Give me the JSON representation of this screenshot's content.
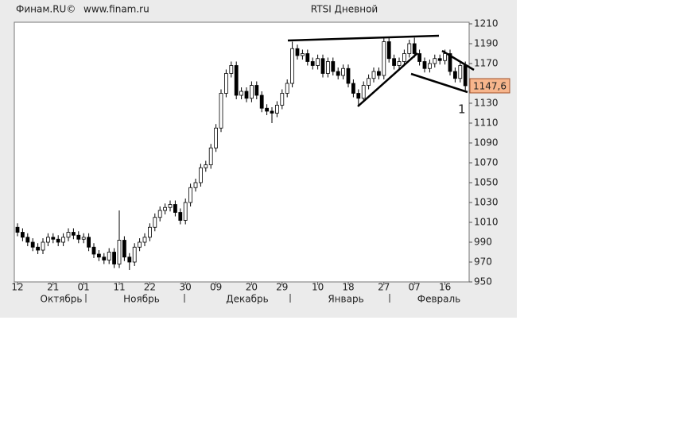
{
  "chart_data": {
    "type": "candlestick",
    "title": "RTSI Дневной",
    "source": "Финам.RU©",
    "url": "www.finam.ru",
    "annotation": "1",
    "categories": [
      "12",
      null,
      null,
      null,
      null,
      null,
      null,
      "21",
      null,
      null,
      null,
      null,
      null,
      "01",
      null,
      null,
      null,
      null,
      null,
      null,
      "11",
      null,
      null,
      null,
      null,
      null,
      "22",
      null,
      null,
      null,
      null,
      null,
      null,
      "30",
      null,
      null,
      null,
      null,
      null,
      "09",
      null,
      null,
      null,
      null,
      null,
      null,
      "20",
      null,
      null,
      null,
      null,
      null,
      "29",
      null,
      null,
      null,
      null,
      null,
      null,
      "10",
      null,
      null,
      null,
      null,
      null,
      "18",
      null,
      null,
      null,
      null,
      null,
      null,
      "27",
      null,
      null,
      null,
      null,
      null,
      "07",
      null,
      null,
      null,
      null,
      null,
      "16",
      null,
      null,
      null,
      null
    ],
    "months": [
      "Октябрь",
      "Ноябрь",
      "Декабрь",
      "Январь",
      "Февраль"
    ],
    "open": [
      1005,
      1000,
      995,
      990,
      985,
      982,
      990,
      995,
      993,
      990,
      995,
      1000,
      997,
      993,
      995,
      985,
      978,
      975,
      972,
      980,
      968,
      992,
      975,
      970,
      985,
      990,
      995,
      1005,
      1015,
      1022,
      1025,
      1028,
      1020,
      1012,
      1030,
      1045,
      1050,
      1065,
      1068,
      1085,
      1105,
      1140,
      1160,
      1168,
      1138,
      1142,
      1135,
      1148,
      1138,
      1125,
      1122,
      1120,
      1128,
      1140,
      1150,
      1185,
      1178,
      1180,
      1172,
      1168,
      1175,
      1160,
      1172,
      1162,
      1158,
      1165,
      1150,
      1140,
      1135,
      1148,
      1155,
      1162,
      1158,
      1192,
      1175,
      1168,
      1172,
      1180,
      1190,
      1180,
      1172,
      1165,
      1170,
      1175,
      1173,
      1180,
      1162,
      1155,
      1168
    ],
    "high": [
      1009,
      1004,
      999,
      994,
      989,
      994,
      999,
      999,
      997,
      999,
      1004,
      1004,
      1001,
      999,
      999,
      989,
      982,
      979,
      984,
      984,
      1022,
      996,
      979,
      989,
      994,
      999,
      1009,
      1019,
      1026,
      1029,
      1032,
      1032,
      1024,
      1034,
      1049,
      1054,
      1069,
      1072,
      1089,
      1109,
      1144,
      1164,
      1172,
      1172,
      1146,
      1146,
      1152,
      1152,
      1142,
      1129,
      1126,
      1132,
      1144,
      1154,
      1192,
      1189,
      1184,
      1184,
      1176,
      1179,
      1179,
      1176,
      1176,
      1166,
      1169,
      1169,
      1154,
      1144,
      1152,
      1159,
      1166,
      1166,
      1196,
      1196,
      1179,
      1176,
      1184,
      1194,
      1196,
      1184,
      1176,
      1174,
      1179,
      1179,
      1184,
      1184,
      1166,
      1172,
      1172
    ],
    "low": [
      996,
      991,
      986,
      981,
      978,
      978,
      986,
      989,
      986,
      986,
      991,
      993,
      989,
      989,
      981,
      974,
      971,
      968,
      968,
      964,
      964,
      971,
      962,
      966,
      981,
      986,
      991,
      1001,
      1011,
      1018,
      1021,
      1016,
      1008,
      1008,
      1026,
      1041,
      1046,
      1061,
      1064,
      1081,
      1101,
      1136,
      1156,
      1134,
      1134,
      1131,
      1131,
      1134,
      1121,
      1118,
      1110,
      1116,
      1124,
      1136,
      1146,
      1174,
      1174,
      1168,
      1164,
      1164,
      1156,
      1156,
      1158,
      1154,
      1154,
      1146,
      1136,
      1128,
      1131,
      1144,
      1151,
      1154,
      1154,
      1171,
      1164,
      1164,
      1168,
      1176,
      1176,
      1168,
      1161,
      1161,
      1166,
      1169,
      1169,
      1158,
      1151,
      1151,
      1143
    ],
    "close": [
      1000,
      995,
      990,
      985,
      982,
      990,
      995,
      993,
      990,
      995,
      1000,
      997,
      993,
      995,
      985,
      978,
      975,
      972,
      980,
      968,
      992,
      975,
      970,
      985,
      990,
      995,
      1005,
      1015,
      1022,
      1025,
      1028,
      1020,
      1012,
      1030,
      1045,
      1050,
      1065,
      1068,
      1085,
      1105,
      1140,
      1160,
      1168,
      1138,
      1142,
      1135,
      1148,
      1138,
      1125,
      1122,
      1120,
      1128,
      1140,
      1150,
      1185,
      1178,
      1180,
      1172,
      1168,
      1175,
      1160,
      1172,
      1162,
      1158,
      1165,
      1150,
      1140,
      1135,
      1148,
      1155,
      1162,
      1158,
      1192,
      1175,
      1168,
      1172,
      1180,
      1190,
      1180,
      1172,
      1165,
      1170,
      1175,
      1173,
      1180,
      1162,
      1155,
      1168,
      1147.6
    ],
    "current_price": {
      "value": 1147.6,
      "label": "1147,6"
    },
    "up_color": "#ffffff",
    "down_color": "#000000",
    "ylim": [
      950,
      1210
    ],
    "yticks": [
      950,
      970,
      990,
      1010,
      1030,
      1050,
      1070,
      1090,
      1110,
      1130,
      1170,
      1190,
      1210
    ]
  }
}
